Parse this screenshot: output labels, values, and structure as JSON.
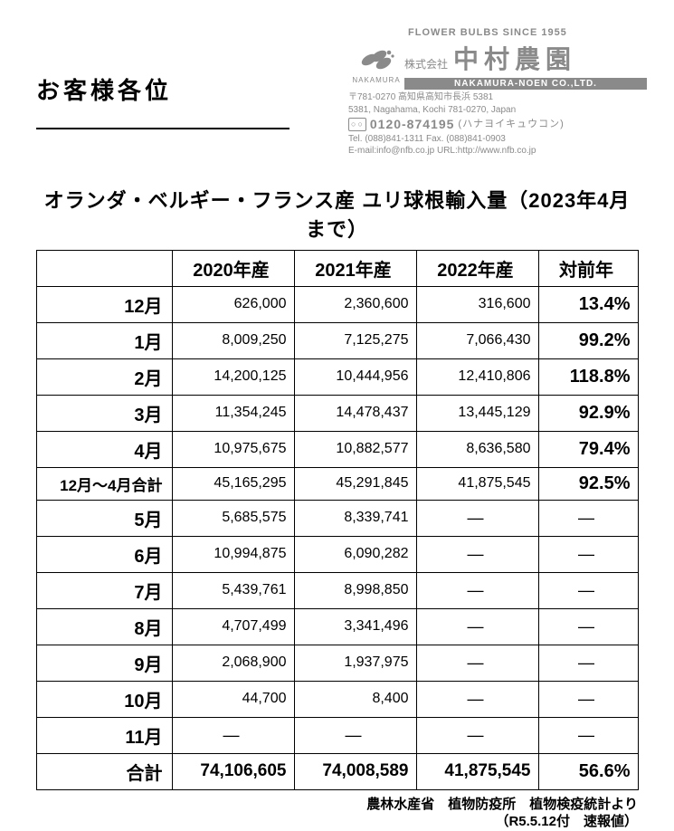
{
  "header": {
    "salutation": "お客様各位",
    "company": {
      "topline": "FLOWER BULBS SINCE 1955",
      "logo_label": "NAKAMURA",
      "name_prefix": "株式会社",
      "name_main": "中村農園",
      "name_en": "NAKAMURA-NOEN CO.,LTD.",
      "addr_jp": "〒781-0270 高知県高知市長浜 5381",
      "addr_en": "5381, Nagahama, Kochi 781-0270, Japan",
      "tel_free": "0120-874195",
      "tel_free_kana": "(ハナヨイキュウコン)",
      "tel": "Tel. (088)841-1311  Fax. (088)841-0903",
      "mail": "E-mail:info@nfb.co.jp  URL:http://www.nfb.co.jp"
    }
  },
  "title": "オランダ・ベルギー・フランス産 ユリ球根輸入量（2023年4月まで）",
  "table": {
    "columns": [
      "",
      "2020年産",
      "2021年産",
      "2022年産",
      "対前年"
    ],
    "rows": [
      {
        "label": "12月",
        "a": "626,000",
        "b": "2,360,600",
        "c": "316,600",
        "d": "13.4%"
      },
      {
        "label": "1月",
        "a": "8,009,250",
        "b": "7,125,275",
        "c": "7,066,430",
        "d": "99.2%"
      },
      {
        "label": "2月",
        "a": "14,200,125",
        "b": "10,444,956",
        "c": "12,410,806",
        "d": "118.8%"
      },
      {
        "label": "3月",
        "a": "11,354,245",
        "b": "14,478,437",
        "c": "13,445,129",
        "d": "92.9%"
      },
      {
        "label": "4月",
        "a": "10,975,675",
        "b": "10,882,577",
        "c": "8,636,580",
        "d": "79.4%"
      },
      {
        "label": "12月～4月合計",
        "a": "45,165,295",
        "b": "45,291,845",
        "c": "41,875,545",
        "d": "92.5%",
        "sub": true
      },
      {
        "label": "5月",
        "a": "5,685,575",
        "b": "8,339,741",
        "c": "—",
        "d": "—"
      },
      {
        "label": "6月",
        "a": "10,994,875",
        "b": "6,090,282",
        "c": "—",
        "d": "—"
      },
      {
        "label": "7月",
        "a": "5,439,761",
        "b": "8,998,850",
        "c": "—",
        "d": "—"
      },
      {
        "label": "8月",
        "a": "4,707,499",
        "b": "3,341,496",
        "c": "—",
        "d": "—"
      },
      {
        "label": "9月",
        "a": "2,068,900",
        "b": "1,937,975",
        "c": "—",
        "d": "—"
      },
      {
        "label": "10月",
        "a": "44,700",
        "b": "8,400",
        "c": "—",
        "d": "—"
      },
      {
        "label": "11月",
        "a": "—",
        "b": "—",
        "c": "—",
        "d": "—"
      },
      {
        "label": "合計",
        "a": "74,106,605",
        "b": "74,008,589",
        "c": "41,875,545",
        "d": "56.6%",
        "total": true
      }
    ]
  },
  "footer": {
    "line1": "農林水産省　植物防疫所　植物検疫統計より",
    "line2": "（R5.5.12付　速報値）"
  },
  "style": {
    "text_color": "#000000",
    "muted_color": "#8a8a8a",
    "background": "#ffffff",
    "border_color": "#000000"
  }
}
